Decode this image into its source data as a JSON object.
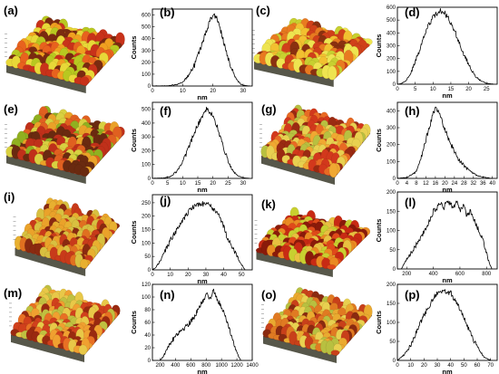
{
  "panel_labels": [
    "(a)",
    "(b)",
    "(c)",
    "(d)",
    "(e)",
    "(f)",
    "(g)",
    "(h)",
    "(i)",
    "(j)",
    "(k)",
    "(l)",
    "(m)",
    "(n)",
    "(o)",
    "(p)"
  ],
  "surface_images": [
    {
      "label": "(a)",
      "palette": [
        "#7a2a10",
        "#c8321a",
        "#e8621e",
        "#f0a020",
        "#e8d838",
        "#b8c820"
      ]
    },
    {
      "label": "(c)",
      "palette": [
        "#8a3010",
        "#d0401a",
        "#e87a20",
        "#f2c030",
        "#eee450",
        "#c8d030"
      ]
    },
    {
      "label": "(e)",
      "palette": [
        "#6a2a10",
        "#c0301a",
        "#e06020",
        "#eaa228",
        "#d8d040",
        "#90b020"
      ]
    },
    {
      "label": "(g)",
      "palette": [
        "#9a2a12",
        "#d2381c",
        "#e86a24",
        "#f0a832",
        "#e8d050",
        "#b8c040"
      ]
    },
    {
      "label": "(i)",
      "palette": [
        "#8a2a10",
        "#c83a1a",
        "#e07020",
        "#eaa22a",
        "#d8c040",
        "#e8b030"
      ]
    },
    {
      "label": "(k)",
      "palette": [
        "#8a1a0a",
        "#c82a14",
        "#e04a1a",
        "#ea8a22",
        "#e8c040",
        "#c8d030"
      ]
    },
    {
      "label": "(m)",
      "palette": [
        "#9a2a10",
        "#d0401c",
        "#e87024",
        "#f0a030",
        "#e8c848",
        "#c0c040"
      ]
    },
    {
      "label": "(o)",
      "palette": [
        "#8a2a10",
        "#c8401a",
        "#e07a22",
        "#eaaa30",
        "#e8d050",
        "#b8c040"
      ]
    }
  ],
  "chart_data": [
    {
      "label": "(b)",
      "type": "line",
      "xlabel": "nm",
      "ylabel": "Counts",
      "xlim": [
        0,
        33
      ],
      "ylim": [
        0,
        650
      ],
      "xticks": [
        0,
        10,
        20,
        30
      ],
      "yticks": [
        0,
        100,
        200,
        300,
        400,
        500,
        600
      ],
      "x": [
        0,
        5,
        8,
        10,
        12,
        14,
        15,
        16,
        17,
        18,
        19,
        20,
        21,
        22,
        23,
        24,
        25,
        26,
        27,
        28,
        29,
        30,
        32
      ],
      "y": [
        0,
        2,
        12,
        35,
        90,
        180,
        250,
        320,
        400,
        470,
        550,
        600,
        590,
        520,
        430,
        330,
        240,
        160,
        95,
        50,
        20,
        6,
        0
      ]
    },
    {
      "label": "(d)",
      "type": "line",
      "xlabel": "nm",
      "ylabel": "Counts",
      "xlim": [
        0,
        28
      ],
      "ylim": [
        0,
        600
      ],
      "xticks": [
        0,
        5,
        10,
        15,
        20,
        25
      ],
      "yticks": [
        0,
        100,
        200,
        300,
        400,
        500,
        600
      ],
      "x": [
        0,
        1,
        2,
        3,
        4,
        5,
        6,
        7,
        8,
        9,
        10,
        11,
        12,
        13,
        14,
        15,
        16,
        17,
        18,
        19,
        20,
        21,
        22,
        23,
        24,
        25,
        26,
        27
      ],
      "y": [
        0,
        5,
        20,
        50,
        100,
        170,
        250,
        330,
        410,
        470,
        520,
        550,
        570,
        560,
        530,
        480,
        420,
        350,
        280,
        210,
        150,
        100,
        60,
        35,
        18,
        8,
        3,
        0
      ]
    },
    {
      "label": "(f)",
      "type": "line",
      "xlabel": "nm",
      "ylabel": "Counts",
      "xlim": [
        0,
        33
      ],
      "ylim": [
        0,
        550
      ],
      "xticks": [
        0,
        5,
        10,
        15,
        20,
        25,
        30
      ],
      "yticks": [
        0,
        100,
        200,
        300,
        400,
        500
      ],
      "x": [
        0,
        4,
        6,
        8,
        10,
        12,
        14,
        16,
        17,
        18,
        19,
        20,
        21,
        22,
        23,
        24,
        25,
        26,
        27,
        28,
        30,
        32
      ],
      "y": [
        0,
        3,
        15,
        50,
        120,
        220,
        340,
        430,
        470,
        500,
        480,
        450,
        400,
        330,
        260,
        190,
        130,
        80,
        45,
        20,
        5,
        0
      ]
    },
    {
      "label": "(h)",
      "type": "line",
      "xlabel": "nm",
      "ylabel": "Counts",
      "xlim": [
        0,
        42
      ],
      "ylim": [
        0,
        450
      ],
      "xticks": [
        0,
        4,
        8,
        12,
        16,
        20,
        24,
        28,
        32,
        36,
        40
      ],
      "yticks": [
        0,
        100,
        200,
        300,
        400
      ],
      "x": [
        0,
        4,
        8,
        10,
        12,
        14,
        15,
        16,
        17,
        18,
        19,
        20,
        22,
        24,
        26,
        28,
        30,
        32,
        34,
        36,
        38,
        40
      ],
      "y": [
        0,
        5,
        40,
        120,
        230,
        330,
        380,
        410,
        400,
        370,
        330,
        290,
        220,
        160,
        110,
        75,
        50,
        30,
        15,
        8,
        3,
        0
      ]
    },
    {
      "label": "(j)",
      "type": "line",
      "xlabel": "nm",
      "ylabel": "Counts",
      "xlim": [
        0,
        56
      ],
      "ylim": [
        0,
        280
      ],
      "xticks": [
        0,
        10,
        20,
        30,
        40,
        50
      ],
      "yticks": [
        0,
        50,
        100,
        150,
        200,
        250
      ],
      "x": [
        0,
        2,
        5,
        8,
        10,
        13,
        15,
        18,
        20,
        22,
        25,
        28,
        30,
        32,
        35,
        38,
        40,
        42,
        45,
        48,
        50,
        52
      ],
      "y": [
        0,
        10,
        40,
        80,
        110,
        140,
        165,
        195,
        215,
        230,
        240,
        245,
        250,
        240,
        225,
        195,
        160,
        120,
        80,
        45,
        20,
        0
      ]
    },
    {
      "label": "(l)",
      "type": "line",
      "xlabel": "nm",
      "ylabel": "Counts",
      "xlim": [
        130,
        880
      ],
      "ylim": [
        0,
        200
      ],
      "xticks": [
        200,
        400,
        600,
        800
      ],
      "yticks": [
        0,
        50,
        100,
        150,
        200
      ],
      "x": [
        160,
        200,
        250,
        300,
        350,
        380,
        400,
        430,
        450,
        480,
        500,
        530,
        550,
        580,
        600,
        630,
        650,
        680,
        700,
        730,
        750,
        780,
        800,
        820,
        840
      ],
      "y": [
        0,
        25,
        50,
        80,
        110,
        130,
        150,
        160,
        175,
        160,
        180,
        170,
        160,
        175,
        150,
        165,
        140,
        150,
        130,
        110,
        90,
        70,
        40,
        15,
        0
      ]
    },
    {
      "label": "(n)",
      "type": "line",
      "xlabel": "nm",
      "ylabel": "Counts",
      "xlim": [
        100,
        1400
      ],
      "ylim": [
        0,
        120
      ],
      "xticks": [
        200,
        400,
        600,
        800,
        1000,
        1200,
        1400
      ],
      "yticks": [
        0,
        20,
        40,
        60,
        80,
        100,
        120
      ],
      "x": [
        200,
        250,
        300,
        350,
        400,
        450,
        500,
        550,
        600,
        650,
        700,
        750,
        800,
        850,
        900,
        950,
        1000,
        1050,
        1100,
        1150,
        1200,
        1250
      ],
      "y": [
        0,
        8,
        20,
        30,
        40,
        45,
        50,
        55,
        62,
        70,
        80,
        92,
        105,
        98,
        110,
        95,
        85,
        70,
        52,
        30,
        12,
        0
      ]
    },
    {
      "label": "(p)",
      "type": "line",
      "xlabel": "nm",
      "ylabel": "Counts",
      "xlim": [
        0,
        75
      ],
      "ylim": [
        0,
        200
      ],
      "xticks": [
        0,
        10,
        20,
        30,
        40,
        50,
        60,
        70
      ],
      "yticks": [
        0,
        50,
        100,
        150,
        200
      ],
      "x": [
        0,
        5,
        10,
        15,
        20,
        25,
        28,
        30,
        32,
        35,
        38,
        40,
        42,
        45,
        48,
        50,
        55,
        60,
        65,
        70
      ],
      "y": [
        0,
        15,
        40,
        80,
        120,
        150,
        170,
        175,
        180,
        185,
        175,
        180,
        165,
        150,
        130,
        110,
        70,
        35,
        10,
        0
      ]
    }
  ]
}
